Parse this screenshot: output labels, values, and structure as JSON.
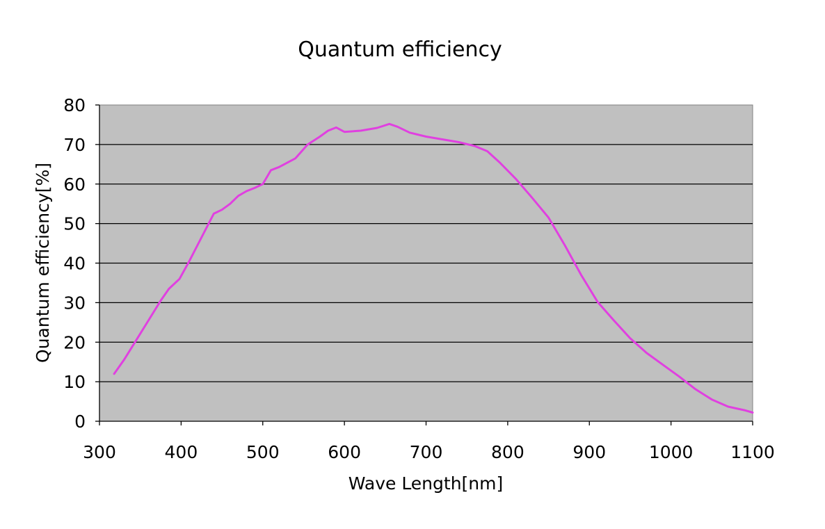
{
  "chart_data": {
    "type": "line",
    "title": "Quantum efficiency",
    "xlabel": "Wave Length[nm]",
    "ylabel": "Quantum efficiency[%]",
    "xlim": [
      300,
      1100
    ],
    "ylim": [
      0,
      80
    ],
    "x_ticks": [
      300,
      400,
      500,
      600,
      700,
      800,
      900,
      1000,
      1100
    ],
    "y_ticks": [
      0,
      10,
      20,
      30,
      40,
      50,
      60,
      70,
      80
    ],
    "grid": "horizontal",
    "legend": "none",
    "colors": {
      "plot_background": "#c0c0c0",
      "line": "#e040e0",
      "gridline": "#000000"
    },
    "series": [
      {
        "x": [
          318,
          330,
          345,
          360,
          375,
          385,
          398,
          410,
          425,
          440,
          450,
          460,
          470,
          480,
          490,
          500,
          510,
          520,
          540,
          555,
          570,
          580,
          590,
          600,
          620,
          640,
          655,
          665,
          680,
          700,
          720,
          740,
          760,
          775,
          790,
          810,
          830,
          850,
          870,
          890,
          910,
          930,
          950,
          970,
          990,
          1010,
          1030,
          1050,
          1070,
          1090,
          1100
        ],
        "y": [
          12,
          15.5,
          20.5,
          25.5,
          30.5,
          33.5,
          36,
          40.5,
          46.5,
          52.5,
          53.5,
          55,
          57,
          58.2,
          59,
          60,
          63.5,
          64.3,
          66.5,
          70,
          72,
          73.5,
          74.3,
          73.2,
          73.5,
          74.2,
          75.2,
          74.5,
          73,
          72,
          71.3,
          70.6,
          69.6,
          68.3,
          65.5,
          61.3,
          56.5,
          51.5,
          44.5,
          37,
          30.2,
          25.5,
          21,
          17.3,
          14.3,
          11.3,
          8.1,
          5.5,
          3.7,
          2.8,
          2.2
        ]
      }
    ]
  }
}
